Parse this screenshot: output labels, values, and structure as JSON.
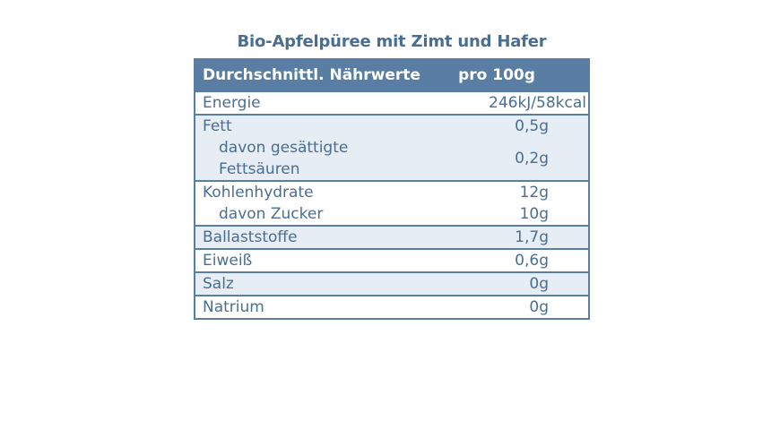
{
  "title": "Bio-Apfelpüree mit Zimt und Hafer",
  "header": {
    "label": "Durchschnittl. Nährwerte",
    "value": "pro 100g"
  },
  "rows": {
    "energie": {
      "label": "Energie",
      "value": "246kJ/58kcal"
    },
    "fett": {
      "label": "Fett",
      "value": "0,5g"
    },
    "gesaettigte": {
      "label": "davon gesättigte Fettsäuren",
      "line1": "davon gesättigte",
      "line2": "Fettsäuren",
      "value": "0,2g"
    },
    "kohlenhydrate": {
      "label": "Kohlenhydrate",
      "value": "12g"
    },
    "zucker": {
      "label": "davon Zucker",
      "value": "10g"
    },
    "ballaststoffe": {
      "label": "Ballaststoffe",
      "value": "1,7g"
    },
    "eiweiss": {
      "label": "Eiweiß",
      "value": "0,6g"
    },
    "salz": {
      "label": "Salz",
      "value": "0g"
    },
    "natrium": {
      "label": "Natrium",
      "value": "0g"
    }
  },
  "colors": {
    "accent": "#5a7ea3",
    "text": "#4a6e93",
    "shade": "#e6edf4"
  }
}
